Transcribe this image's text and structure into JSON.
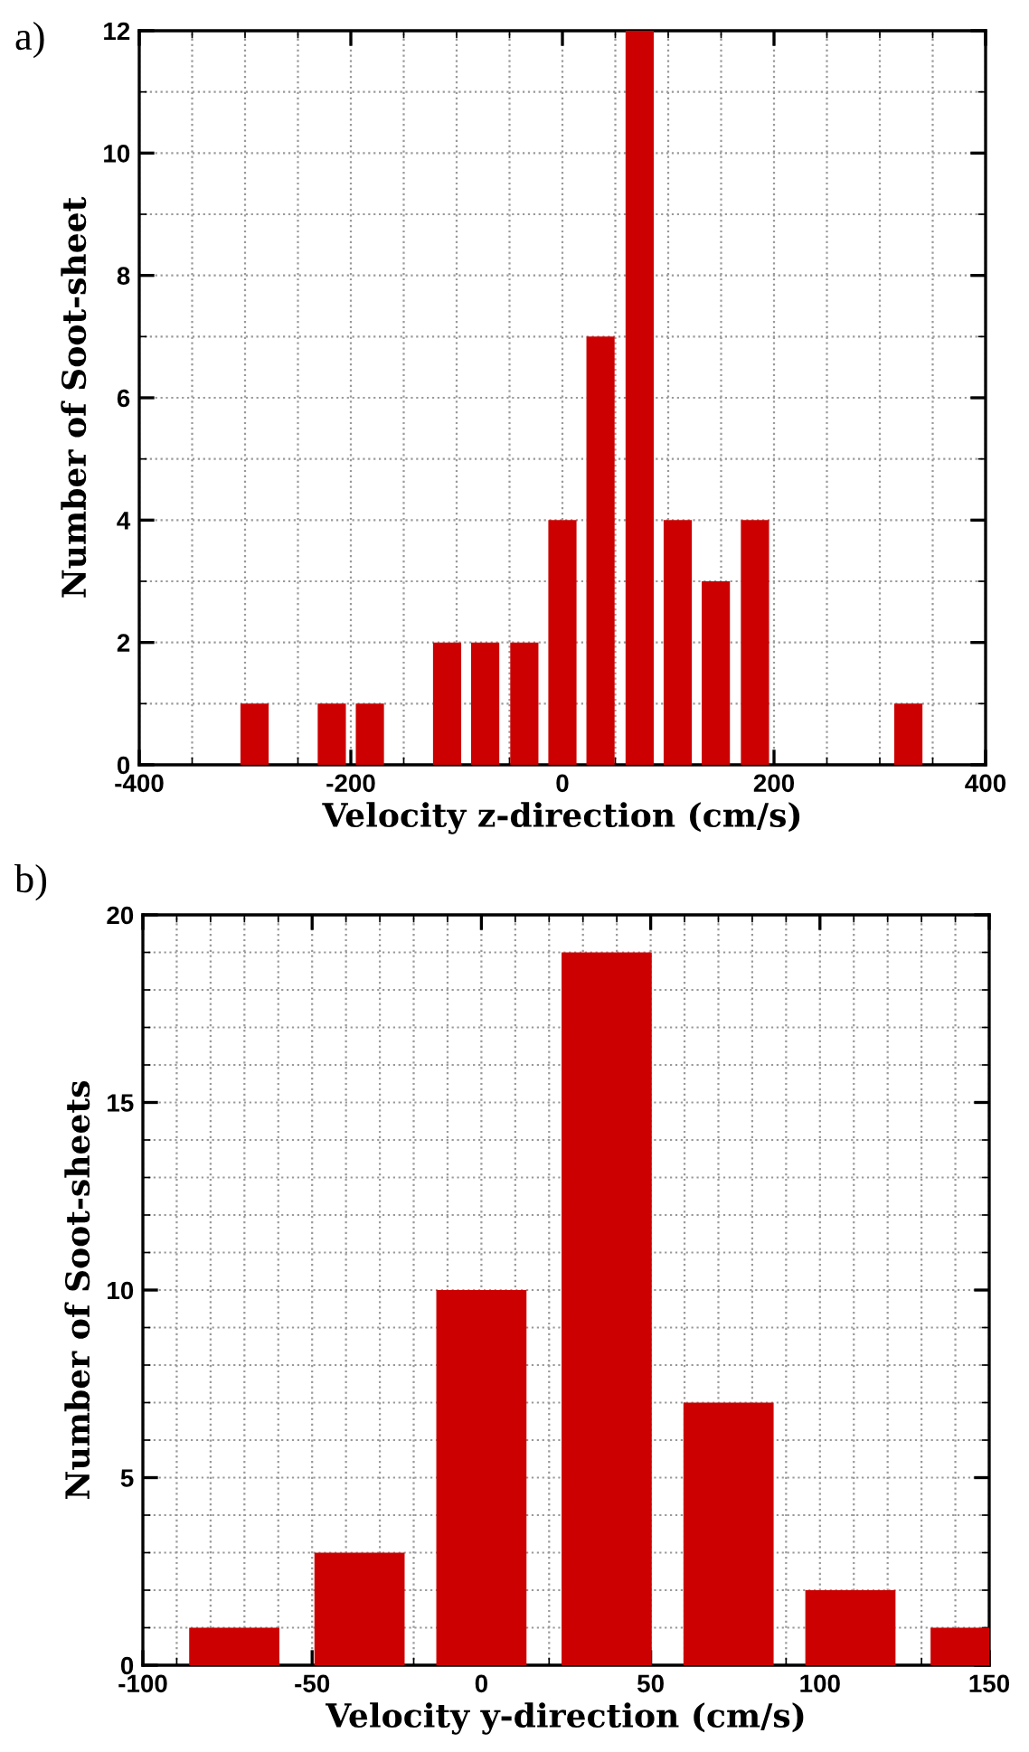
{
  "chart_data": [
    {
      "type": "bar",
      "title": "a)",
      "xlabel": "Velocity z-direction (cm/s)",
      "ylabel": "Number of Soot-sheet",
      "x": [
        -291,
        -218,
        -182,
        -109,
        -73,
        -36,
        0,
        36,
        73,
        109,
        145,
        182,
        327
      ],
      "values": [
        1,
        1,
        1,
        2,
        2,
        2,
        4,
        7,
        12,
        4,
        3,
        4,
        1
      ],
      "color": "#cc0000",
      "xlim": [
        -400,
        400
      ],
      "xticks": [
        -400,
        -200,
        0,
        200,
        400
      ],
      "ylim": [
        0,
        12
      ],
      "yticks": [
        0,
        2,
        4,
        6,
        8,
        10,
        12
      ],
      "grid": true
    },
    {
      "type": "bar",
      "title": "b)",
      "xlabel": "Velocity y-direction (cm/s)",
      "ylabel": "Number of Soot-sheets",
      "x": [
        -73,
        -36,
        0,
        37,
        73,
        109,
        146
      ],
      "values": [
        1,
        3,
        10,
        19,
        7,
        2,
        1
      ],
      "color": "#cc0000",
      "xlim": [
        -100,
        150
      ],
      "xticks": [
        -100,
        -50,
        0,
        50,
        100,
        150
      ],
      "ylim": [
        0,
        20
      ],
      "yticks": [
        0,
        5,
        10,
        15,
        20
      ],
      "grid": true
    }
  ]
}
